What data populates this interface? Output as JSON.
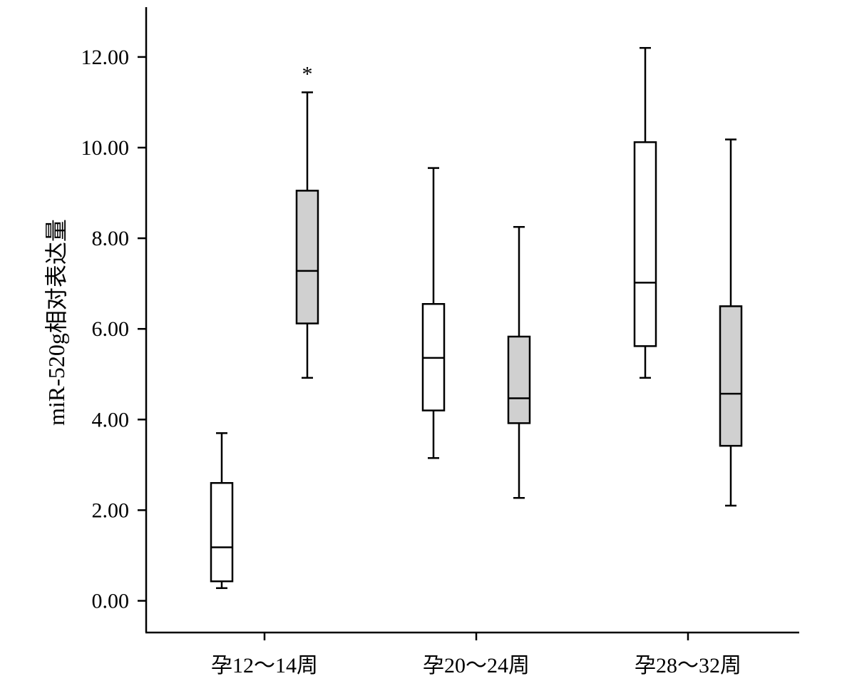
{
  "chart_data": {
    "type": "box",
    "title": "",
    "xlabel": "",
    "ylabel": "miR-520g相对表达量",
    "ylim": [
      -0.7,
      13.1
    ],
    "yticks": [
      "0.00",
      "2.00",
      "4.00",
      "6.00",
      "8.00",
      "10.00",
      "12.00"
    ],
    "ytick_values": [
      0,
      2,
      4,
      6,
      8,
      10,
      12
    ],
    "grid": false,
    "legend": "none",
    "categories": [
      "孕12～14周",
      "孕20～24周",
      "孕28～32周"
    ],
    "series": [
      {
        "color": "#ffffff",
        "boxes": [
          {
            "category": "孕12～14周",
            "min": 0.28,
            "q1": 0.43,
            "median": 1.18,
            "q3": 2.6,
            "max": 3.7
          },
          {
            "category": "孕20～24周",
            "min": 3.15,
            "q1": 4.2,
            "median": 5.36,
            "q3": 6.55,
            "max": 9.55
          },
          {
            "category": "孕28～32周",
            "min": 4.92,
            "q1": 5.62,
            "median": 7.02,
            "q3": 10.12,
            "max": 12.2
          }
        ]
      },
      {
        "color": "#d0d0d0",
        "boxes": [
          {
            "category": "孕12～14周",
            "min": 4.92,
            "q1": 6.12,
            "median": 7.28,
            "q3": 9.05,
            "max": 11.22,
            "marker": "*"
          },
          {
            "category": "孕20～24周",
            "min": 2.27,
            "q1": 3.92,
            "median": 4.47,
            "q3": 5.83,
            "max": 8.25
          },
          {
            "category": "孕28～32周",
            "min": 2.1,
            "q1": 3.42,
            "median": 4.57,
            "q3": 6.5,
            "max": 10.18
          }
        ]
      }
    ]
  }
}
